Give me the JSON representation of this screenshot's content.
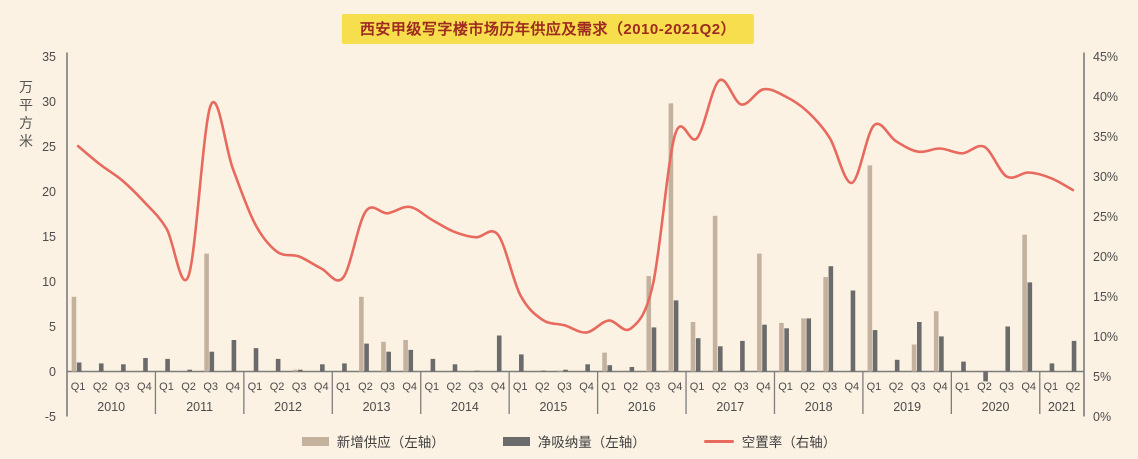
{
  "title": "西安甲级写字楼市场历年供应及需求（2010-2021Q2）",
  "left_axis": {
    "label": "万平方米",
    "ticks": [
      35,
      30,
      25,
      20,
      15,
      10,
      5,
      0,
      -5
    ]
  },
  "right_axis": {
    "ticks": [
      "45%",
      "40%",
      "35%",
      "30%",
      "25%",
      "20%",
      "15%",
      "10%",
      "5%",
      "0%"
    ]
  },
  "legend": [
    {
      "label": "新增供应（左轴）",
      "color": "#C4B19E",
      "type": "bar"
    },
    {
      "label": "净吸纳量（左轴）",
      "color": "#6B6B6B",
      "type": "bar"
    },
    {
      "label": "空置率（右轴）",
      "color": "#E8695E",
      "type": "line"
    }
  ],
  "colors": {
    "background": "#FBF2E3",
    "title_bg": "#F6DE4C",
    "title_text": "#9E2A20",
    "axis_line": "#7D7D7D",
    "axis_text": "#4C4C4C"
  },
  "chart_data": {
    "type": "bar+line",
    "title": "西安甲级写字楼市场历年供应及需求（2010-2021Q2）",
    "years": [
      "2010",
      "2011",
      "2012",
      "2013",
      "2014",
      "2015",
      "2016",
      "2017",
      "2018",
      "2019",
      "2020",
      "2021"
    ],
    "quarters_per_year": [
      4,
      4,
      4,
      4,
      4,
      4,
      4,
      4,
      4,
      4,
      4,
      2
    ],
    "left_ylabel": "万平方米",
    "left_ylim": [
      -5,
      35
    ],
    "right_ylim": [
      0,
      45
    ],
    "grid": false,
    "legend_position": "bottom",
    "series": [
      {
        "name": "新增供应（左轴）",
        "type": "bar",
        "axis": "left",
        "values": [
          8.3,
          0,
          0,
          0,
          0,
          0,
          13.1,
          0,
          0,
          0,
          0.2,
          0,
          0,
          8.3,
          3.3,
          3.5,
          0,
          0,
          0,
          0,
          0,
          0,
          0.1,
          0,
          2.1,
          0,
          10.6,
          29.8,
          5.5,
          17.3,
          0,
          13.1,
          5.4,
          5.9,
          10.5,
          0,
          22.9,
          0,
          3.0,
          6.7,
          0,
          0,
          0,
          15.2,
          0,
          0
        ]
      },
      {
        "name": "净吸纳量（左轴）",
        "type": "bar",
        "axis": "left",
        "values": [
          1.0,
          0.9,
          0.8,
          1.5,
          1.4,
          0.2,
          2.2,
          3.5,
          2.6,
          1.4,
          0.2,
          0.8,
          0.9,
          3.1,
          2.2,
          2.4,
          1.4,
          0.8,
          0.1,
          4.0,
          1.9,
          0.1,
          0.2,
          0.8,
          0.7,
          0.5,
          4.9,
          7.9,
          3.7,
          2.8,
          3.4,
          5.2,
          4.8,
          5.9,
          11.7,
          9.0,
          4.6,
          1.3,
          5.5,
          3.9,
          1.1,
          -1.1,
          5.0,
          9.9,
          0.9,
          3.4
        ]
      },
      {
        "name": "空置率（右轴）",
        "type": "line",
        "axis": "right",
        "values": [
          33.8,
          31.5,
          29.5,
          26.8,
          23.5,
          17.6,
          38.9,
          31.0,
          24.1,
          20.6,
          20.0,
          18.5,
          17.4,
          25.6,
          25.4,
          26.2,
          24.6,
          23.1,
          22.4,
          22.7,
          15.2,
          12.1,
          11.4,
          10.5,
          12.0,
          11.0,
          16.5,
          35.2,
          34.8,
          42.0,
          39.0,
          40.9,
          40.0,
          38.1,
          34.8,
          29.2,
          36.4,
          34.4,
          33.1,
          33.5,
          32.9,
          33.7,
          30.0,
          30.5,
          29.8,
          28.3
        ]
      }
    ]
  }
}
